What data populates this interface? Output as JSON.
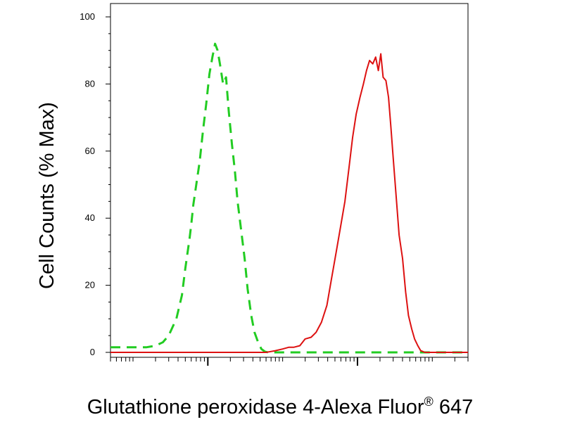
{
  "chart_data": {
    "type": "line",
    "title": "",
    "xlabel": "Glutathione peroxidase 4-Alexa Fluor",
    "xlabel_superscript": "®",
    "xlabel_suffix": " 647",
    "ylabel": "Cell Counts (% Max)",
    "x_scale": "log",
    "xlim": [
      0.5,
      30000
    ],
    "ylim": [
      0,
      100
    ],
    "y_ticks": [
      0,
      20,
      40,
      60,
      80,
      100
    ],
    "x_major_ticks": [
      10,
      1000,
      100000
    ],
    "grid": false,
    "legend": "none",
    "series": [
      {
        "color": "#22cc22",
        "style": "dashed",
        "x": [
          0.5,
          1,
          1.5,
          2,
          2.5,
          3,
          3.8,
          4.5,
          5,
          5.7,
          6,
          6.4,
          7,
          7.8,
          8.6,
          9.5,
          10.5,
          11.5,
          12.5,
          13.5,
          14.5,
          16,
          17.5,
          19,
          21,
          23,
          25,
          28,
          31,
          34,
          38,
          42,
          47,
          52,
          58,
          64,
          75,
          90,
          120,
          200,
          500,
          2000,
          30000
        ],
        "y": [
          1.5,
          1.5,
          1.5,
          2,
          3,
          5,
          10,
          17,
          25,
          34,
          38,
          44,
          50,
          57,
          66,
          74,
          83,
          88,
          92,
          90,
          86,
          80,
          82,
          72,
          62,
          54,
          45,
          36,
          28,
          19,
          11,
          6,
          3,
          1,
          0.2,
          0,
          0,
          0,
          0,
          0,
          0,
          0,
          0
        ]
      },
      {
        "color": "#dd1111",
        "style": "solid",
        "x": [
          0.5,
          40,
          60,
          80,
          100,
          120,
          140,
          170,
          200,
          240,
          280,
          330,
          390,
          450,
          520,
          600,
          680,
          770,
          860,
          960,
          1080,
          1200,
          1320,
          1450,
          1600,
          1750,
          1900,
          2050,
          2200,
          2400,
          2600,
          2800,
          3000,
          3300,
          3600,
          4000,
          4400,
          4800,
          5300,
          5800,
          6400,
          7000,
          8000,
          10000,
          30000
        ],
        "y": [
          0,
          0,
          0,
          0.5,
          1,
          1.5,
          1.5,
          2,
          4,
          4.5,
          6,
          9,
          14,
          22,
          30,
          38,
          45,
          55,
          64,
          71,
          76,
          80,
          84,
          87,
          86,
          88,
          84,
          89,
          82,
          81,
          76,
          67,
          58,
          46,
          35,
          28,
          18,
          11,
          7,
          4,
          2,
          0.5,
          0,
          0,
          0
        ]
      }
    ]
  }
}
